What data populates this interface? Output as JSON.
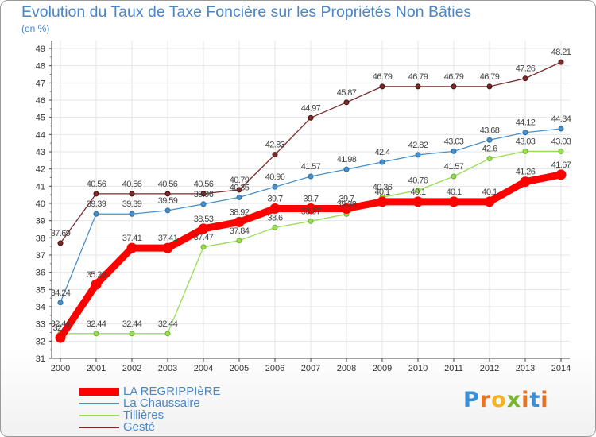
{
  "title": "Evolution du Taux de Taxe Foncière sur les Propriétés Non Bâties",
  "unit": "(en %)",
  "logo": {
    "text": "Proxiti"
  },
  "chart_data": {
    "type": "line",
    "title": "Evolution du Taux de Taxe Foncière sur les Propriétés Non Bâties",
    "ylabel": "(en %)",
    "xlabel": "",
    "ylim": [
      31,
      49
    ],
    "yticks": [
      31,
      32,
      33,
      34,
      35,
      36,
      37,
      38,
      39,
      40,
      41,
      42,
      43,
      44,
      45,
      46,
      47,
      48,
      49
    ],
    "x": [
      "2000",
      "2001",
      "2002",
      "2003",
      "2004",
      "2005",
      "2006",
      "2007",
      "2008",
      "2009",
      "2010",
      "2011",
      "2012",
      "2013",
      "2014"
    ],
    "grid": true,
    "legend_position": "bottom-left",
    "series": [
      {
        "name": "LA REGRIPPIèRE",
        "color": "#ff0000",
        "emphasis": true,
        "values": [
          32.2,
          35.29,
          37.41,
          37.41,
          38.53,
          38.92,
          39.7,
          39.7,
          39.7,
          40.1,
          40.1,
          40.1,
          40.1,
          41.26,
          41.67
        ],
        "labels": [
          "32.2",
          "35.29",
          "37.41",
          "37.41",
          "38.53",
          "38.92",
          "39.7",
          "39.7",
          "39.7",
          "40.1",
          "40.1",
          "40.1",
          "40.1",
          "41.26",
          "41.67"
        ]
      },
      {
        "name": "La Chaussaire",
        "color": "#4a90c8",
        "values": [
          34.24,
          39.39,
          39.39,
          39.59,
          39.96,
          40.35,
          40.96,
          41.57,
          41.98,
          42.4,
          42.82,
          43.03,
          43.68,
          44.12,
          44.34
        ],
        "labels": [
          "34.24",
          "39.39",
          "39.39",
          "39.59",
          "39.96",
          "40.35",
          "40.96",
          "41.57",
          "41.98",
          "42.4",
          "42.82",
          "43.03",
          "43.68",
          "44.12",
          "44.34"
        ]
      },
      {
        "name": "Tillières",
        "color": "#99dd55",
        "values": [
          32.44,
          32.44,
          32.44,
          32.44,
          37.47,
          37.84,
          38.6,
          38.97,
          39.38,
          40.36,
          40.76,
          41.57,
          42.6,
          43.03,
          43.03
        ],
        "labels": [
          "32.44",
          "32.44",
          "32.44",
          "32.44",
          "37.47",
          "37.84",
          "38.6",
          "38.97",
          "39.38",
          "40.36",
          "40.76",
          "41.57",
          "42.6",
          "43.03",
          "43.03"
        ]
      },
      {
        "name": "Gesté",
        "color": "#7a2a2a",
        "values": [
          37.69,
          40.56,
          40.56,
          40.56,
          40.56,
          40.79,
          42.83,
          44.97,
          45.87,
          46.79,
          46.79,
          46.79,
          46.79,
          47.26,
          48.21
        ],
        "labels": [
          "37.69",
          "40.56",
          "40.56",
          "40.56",
          "40.56",
          "40.79",
          "42.83",
          "44.97",
          "45.87",
          "46.79",
          "46.79",
          "46.79",
          "46.79",
          "47.26",
          "48.21"
        ]
      }
    ]
  }
}
